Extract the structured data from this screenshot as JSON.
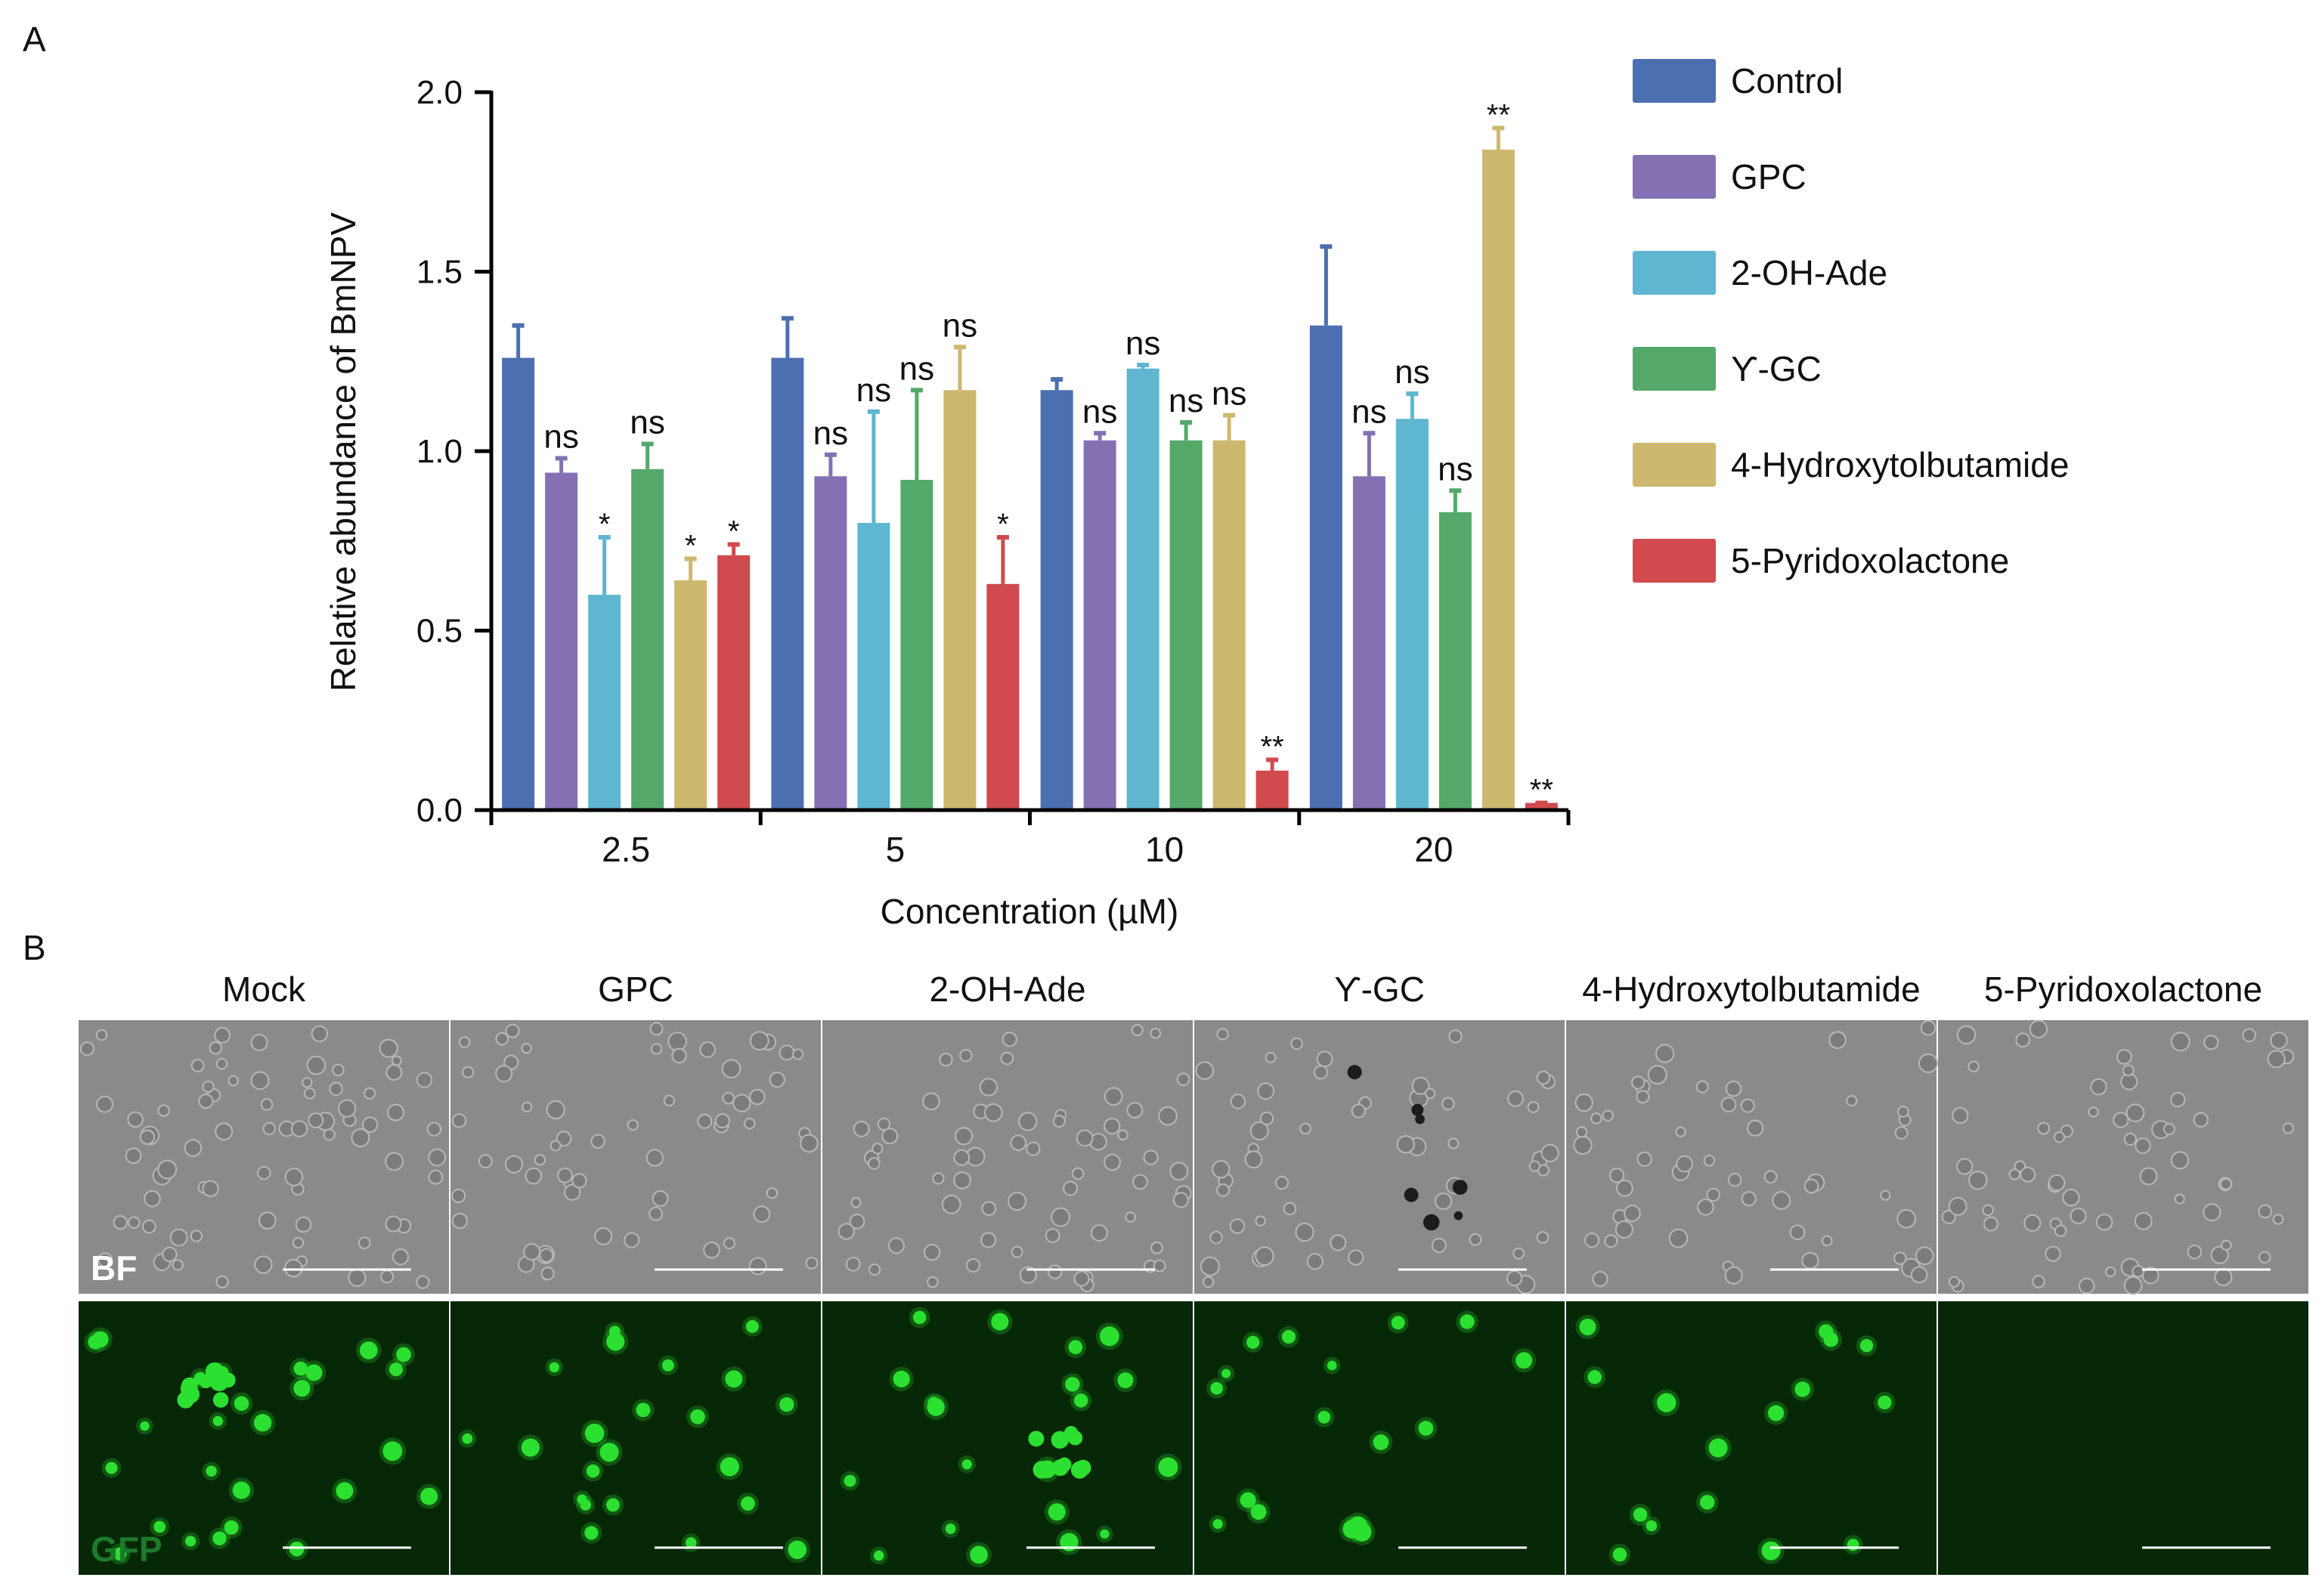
{
  "panels": {
    "a_label": "A",
    "b_label": "B"
  },
  "colors": {
    "Control": "#4c6fb1",
    "GPC": "#8371b4",
    "2-OH-Ade": "#5fb6d0",
    "Y-GC": "#54a96a",
    "4-Hydroxytolbutamide": "#cdb86f",
    "5-Pyridoxolactone": "#d04a4e",
    "bf_background": "#8a8a8a",
    "gfp_background": "#062806",
    "gfp_cell": "#2be030"
  },
  "chart_data": {
    "type": "bar",
    "xlabel": "Concentration (µM)",
    "ylabel": "Relative abundance of BmNPV",
    "ylim": [
      0,
      2.0
    ],
    "yticks": [
      "0.0",
      "0.5",
      "1.0",
      "1.5",
      "2.0"
    ],
    "categories": [
      "2.5",
      "5",
      "10",
      "20"
    ],
    "legend_position": "right",
    "series": [
      {
        "name": "Control",
        "values": [
          1.26,
          1.26,
          1.17,
          1.35
        ],
        "errors": [
          0.09,
          0.11,
          0.03,
          0.22
        ],
        "annotations": [
          "",
          "",
          "",
          ""
        ]
      },
      {
        "name": "GPC",
        "values": [
          0.94,
          0.93,
          1.03,
          0.93
        ],
        "errors": [
          0.04,
          0.06,
          0.02,
          0.12
        ],
        "annotations": [
          "ns",
          "ns",
          "ns",
          "ns"
        ]
      },
      {
        "name": "2-OH-Ade",
        "values": [
          0.6,
          0.8,
          1.23,
          1.09
        ],
        "errors": [
          0.16,
          0.31,
          0.01,
          0.07
        ],
        "annotations": [
          "*",
          "ns",
          "ns",
          "ns"
        ]
      },
      {
        "name": "ϒ-GC",
        "values": [
          0.95,
          0.92,
          1.03,
          0.83
        ],
        "errors": [
          0.07,
          0.25,
          0.05,
          0.06
        ],
        "annotations": [
          "ns",
          "ns",
          "ns",
          "ns"
        ]
      },
      {
        "name": "4-Hydroxytolbutamide",
        "values": [
          0.64,
          1.17,
          1.03,
          1.84
        ],
        "errors": [
          0.06,
          0.12,
          0.07,
          0.06
        ],
        "annotations": [
          "*",
          "ns",
          "ns",
          "**"
        ]
      },
      {
        "name": "5-Pyridoxolactone",
        "values": [
          0.71,
          0.63,
          0.11,
          0.02
        ],
        "errors": [
          0.03,
          0.13,
          0.03,
          0.0
        ],
        "annotations": [
          "*",
          "*",
          "**",
          "**"
        ]
      }
    ]
  },
  "micrographs": {
    "columns": [
      "Mock",
      "GPC",
      "2-OH-Ade",
      "ϒ-GC",
      "4-Hydroxytolbutamide",
      "5-Pyridoxolactone"
    ],
    "rows": [
      "BF",
      "GFP"
    ]
  }
}
